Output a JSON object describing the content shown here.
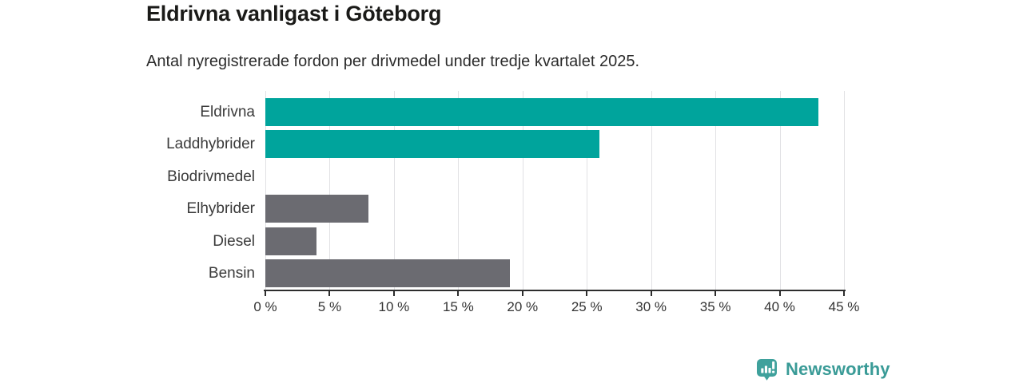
{
  "chart_data": {
    "type": "bar",
    "orientation": "horizontal",
    "title": "Eldrivna vanligast i Göteborg",
    "subtitle": "Antal nyregistrerade fordon per drivmedel under tredje kvartalet 2025.",
    "categories": [
      "Eldrivna",
      "Laddhybrider",
      "Biodrivmedel",
      "Elhybrider",
      "Diesel",
      "Bensin"
    ],
    "values": [
      43,
      26,
      0,
      8,
      4,
      19
    ],
    "unit": "%",
    "bar_colors": [
      "#00a49c",
      "#00a49c",
      "#6b6b71",
      "#6b6b71",
      "#6b6b71",
      "#6b6b71"
    ],
    "xlim": [
      0,
      45
    ],
    "x_ticks": [
      0,
      5,
      10,
      15,
      20,
      25,
      30,
      35,
      40,
      45
    ],
    "x_tick_labels": [
      "0 %",
      "5 %",
      "10 %",
      "15 %",
      "20 %",
      "25 %",
      "30 %",
      "35 %",
      "40 %",
      "45 %"
    ],
    "grid": "vertical-only",
    "legend": "none",
    "colors": {
      "highlight_bar": "#00a49c",
      "default_bar": "#6b6b71",
      "gridline": "#e1e1e4",
      "axis": "#2d2d2d",
      "label_text": "#3a3a3a"
    }
  },
  "logo": {
    "text": "Newsworthy",
    "color": "#3a9b97",
    "icon_color": "#3fa19c",
    "icon": "speech-bubble-bar-chart"
  }
}
